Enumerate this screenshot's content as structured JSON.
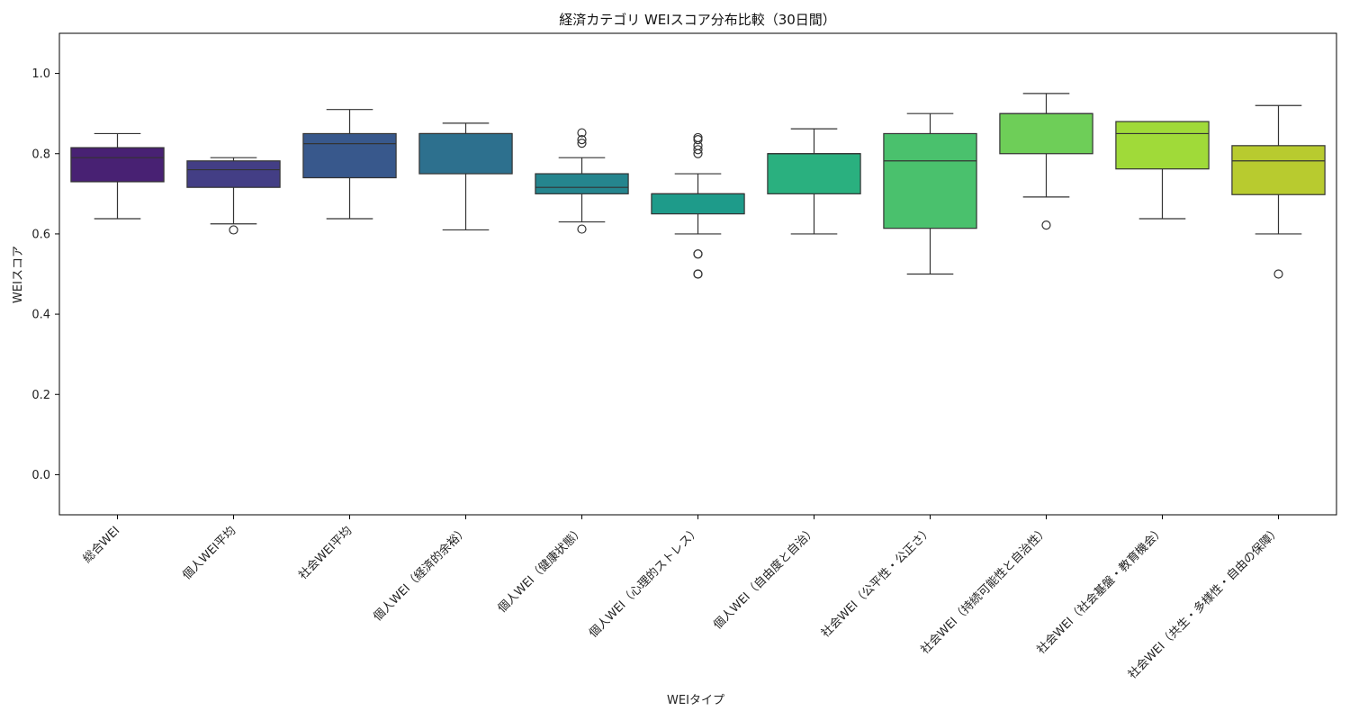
{
  "chart_data": {
    "type": "box",
    "title": "経済カテゴリ WEIスコア分布比較（30日間）",
    "xlabel": "WEIタイプ",
    "ylabel": "WEIスコア",
    "ylim": [
      -0.1,
      1.1
    ],
    "yticks": [
      0.0,
      0.2,
      0.4,
      0.6,
      0.8,
      1.0
    ],
    "ytick_labels": [
      "0.0",
      "0.2",
      "0.4",
      "0.6",
      "0.8",
      "1.0"
    ],
    "grid": false,
    "legend": "none",
    "categories": [
      "総合WEI",
      "個人WEI平均",
      "社会WEI平均",
      "個人WEI（経済的余裕）",
      "個人WEI（健康状態）",
      "個人WEI（心理的ストレス）",
      "個人WEI（自由度と自治）",
      "社会WEI（公平性・公正さ）",
      "社会WEI（持続可能性と自治性）",
      "社会WEI（社会基盤・教育機会）",
      "社会WEI（共生・多様性・自由の保障）"
    ],
    "boxes": [
      {
        "whisker_low": 0.638,
        "q1": 0.73,
        "median": 0.79,
        "q3": 0.815,
        "whisker_high": 0.85,
        "outliers": []
      },
      {
        "whisker_low": 0.625,
        "q1": 0.716,
        "median": 0.76,
        "q3": 0.782,
        "whisker_high": 0.79,
        "outliers": [
          0.61
        ]
      },
      {
        "whisker_low": 0.638,
        "q1": 0.74,
        "median": 0.825,
        "q3": 0.85,
        "whisker_high": 0.91,
        "outliers": []
      },
      {
        "whisker_low": 0.61,
        "q1": 0.75,
        "median": 0.85,
        "q3": 0.85,
        "whisker_high": 0.876,
        "outliers": []
      },
      {
        "whisker_low": 0.63,
        "q1": 0.7,
        "median": 0.716,
        "q3": 0.75,
        "whisker_high": 0.79,
        "outliers": [
          0.852,
          0.835,
          0.826,
          0.612
        ]
      },
      {
        "whisker_low": 0.6,
        "q1": 0.65,
        "median": 0.7,
        "q3": 0.7,
        "whisker_high": 0.75,
        "outliers": [
          0.84,
          0.835,
          0.82,
          0.81,
          0.8,
          0.55,
          0.55,
          0.5,
          0.5
        ]
      },
      {
        "whisker_low": 0.6,
        "q1": 0.7,
        "median": 0.8,
        "q3": 0.8,
        "whisker_high": 0.862,
        "outliers": []
      },
      {
        "whisker_low": 0.5,
        "q1": 0.614,
        "median": 0.782,
        "q3": 0.85,
        "whisker_high": 0.9,
        "outliers": []
      },
      {
        "whisker_low": 0.692,
        "q1": 0.8,
        "median": 0.9,
        "q3": 0.9,
        "whisker_high": 0.95,
        "outliers": [
          0.622
        ]
      },
      {
        "whisker_low": 0.638,
        "q1": 0.762,
        "median": 0.85,
        "q3": 0.88,
        "whisker_high": 0.88,
        "outliers": []
      },
      {
        "whisker_low": 0.6,
        "q1": 0.698,
        "median": 0.782,
        "q3": 0.82,
        "whisker_high": 0.92,
        "outliers": [
          0.5
        ]
      }
    ],
    "colors": [
      "#482173",
      "#433e85",
      "#38588c",
      "#2d708e",
      "#25858e",
      "#1e9b8a",
      "#2ab07f",
      "#4ac16d",
      "#6ece58",
      "#a0da39",
      "#b8cb2f"
    ]
  }
}
